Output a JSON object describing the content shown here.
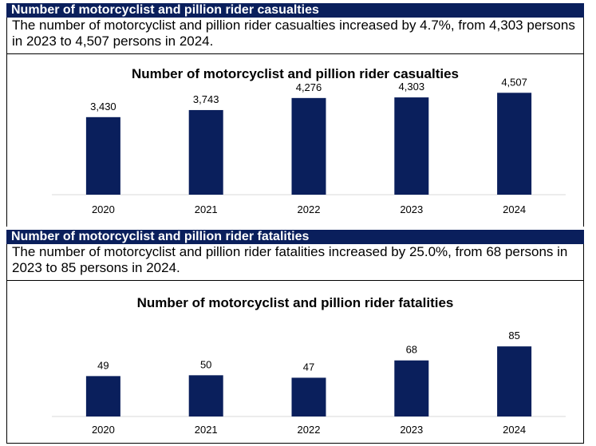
{
  "sections": [
    {
      "header": "Number of motorcyclist and pillion rider casualties",
      "text": "The number of motorcyclist and pillion rider casualties increased by 4.7%, from 4,303 persons in 2023 to 4,507 persons in 2024."
    },
    {
      "header": "Number of motorcyclist and pillion rider fatalities",
      "text": "The number of motorcyclist and pillion rider fatalities increased by 25.0%, from 68 persons in 2023 to 85 persons in 2024."
    }
  ],
  "colors": {
    "header_bg": "#0a1f5c",
    "bar": "#0a1f5c"
  },
  "chart_data": [
    {
      "type": "bar",
      "title": "Number of motorcyclist and pillion rider casualties",
      "categories": [
        "2020",
        "2021",
        "2022",
        "2023",
        "2024"
      ],
      "values": [
        3430,
        3743,
        4276,
        4303,
        4507
      ],
      "labels": [
        "3,430",
        "3,743",
        "4,276",
        "4,303",
        "4,507"
      ],
      "ylim": [
        0,
        6000
      ],
      "grid": false
    },
    {
      "type": "bar",
      "title": "Number of motorcyclist and pillion rider fatalities",
      "categories": [
        "2020",
        "2021",
        "2022",
        "2023",
        "2024"
      ],
      "values": [
        49,
        50,
        47,
        68,
        85
      ],
      "labels": [
        "49",
        "50",
        "47",
        "68",
        "85"
      ],
      "ylim": [
        0,
        150
      ],
      "grid": false
    }
  ]
}
